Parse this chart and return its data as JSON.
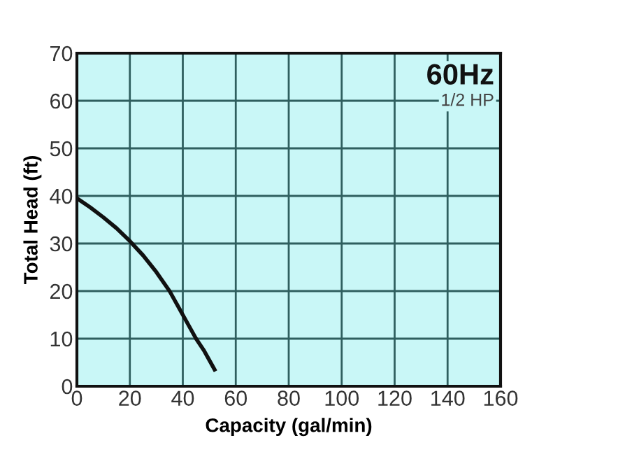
{
  "chart_data": {
    "type": "line",
    "xlabel": "Capacity (gal/min)",
    "ylabel": "Total Head (ft)",
    "annotations": [
      "60Hz",
      "1/2 HP"
    ],
    "x": [
      0,
      5,
      10,
      15,
      20,
      25,
      30,
      35,
      40,
      45,
      48,
      52
    ],
    "series": [
      {
        "color": "#111111",
        "values": [
          39.5,
          37.6,
          35.5,
          33.2,
          30.5,
          27.5,
          24,
          20,
          15,
          10,
          7.5,
          3.5
        ]
      }
    ],
    "xlim": [
      0,
      160
    ],
    "xticks": [
      0,
      20,
      40,
      60,
      80,
      100,
      120,
      140,
      160
    ],
    "ylim": [
      0,
      70
    ],
    "yticks": [
      0,
      10,
      20,
      30,
      40,
      50,
      60,
      70
    ],
    "grid": true,
    "marker": "none",
    "line_style": "solid"
  }
}
